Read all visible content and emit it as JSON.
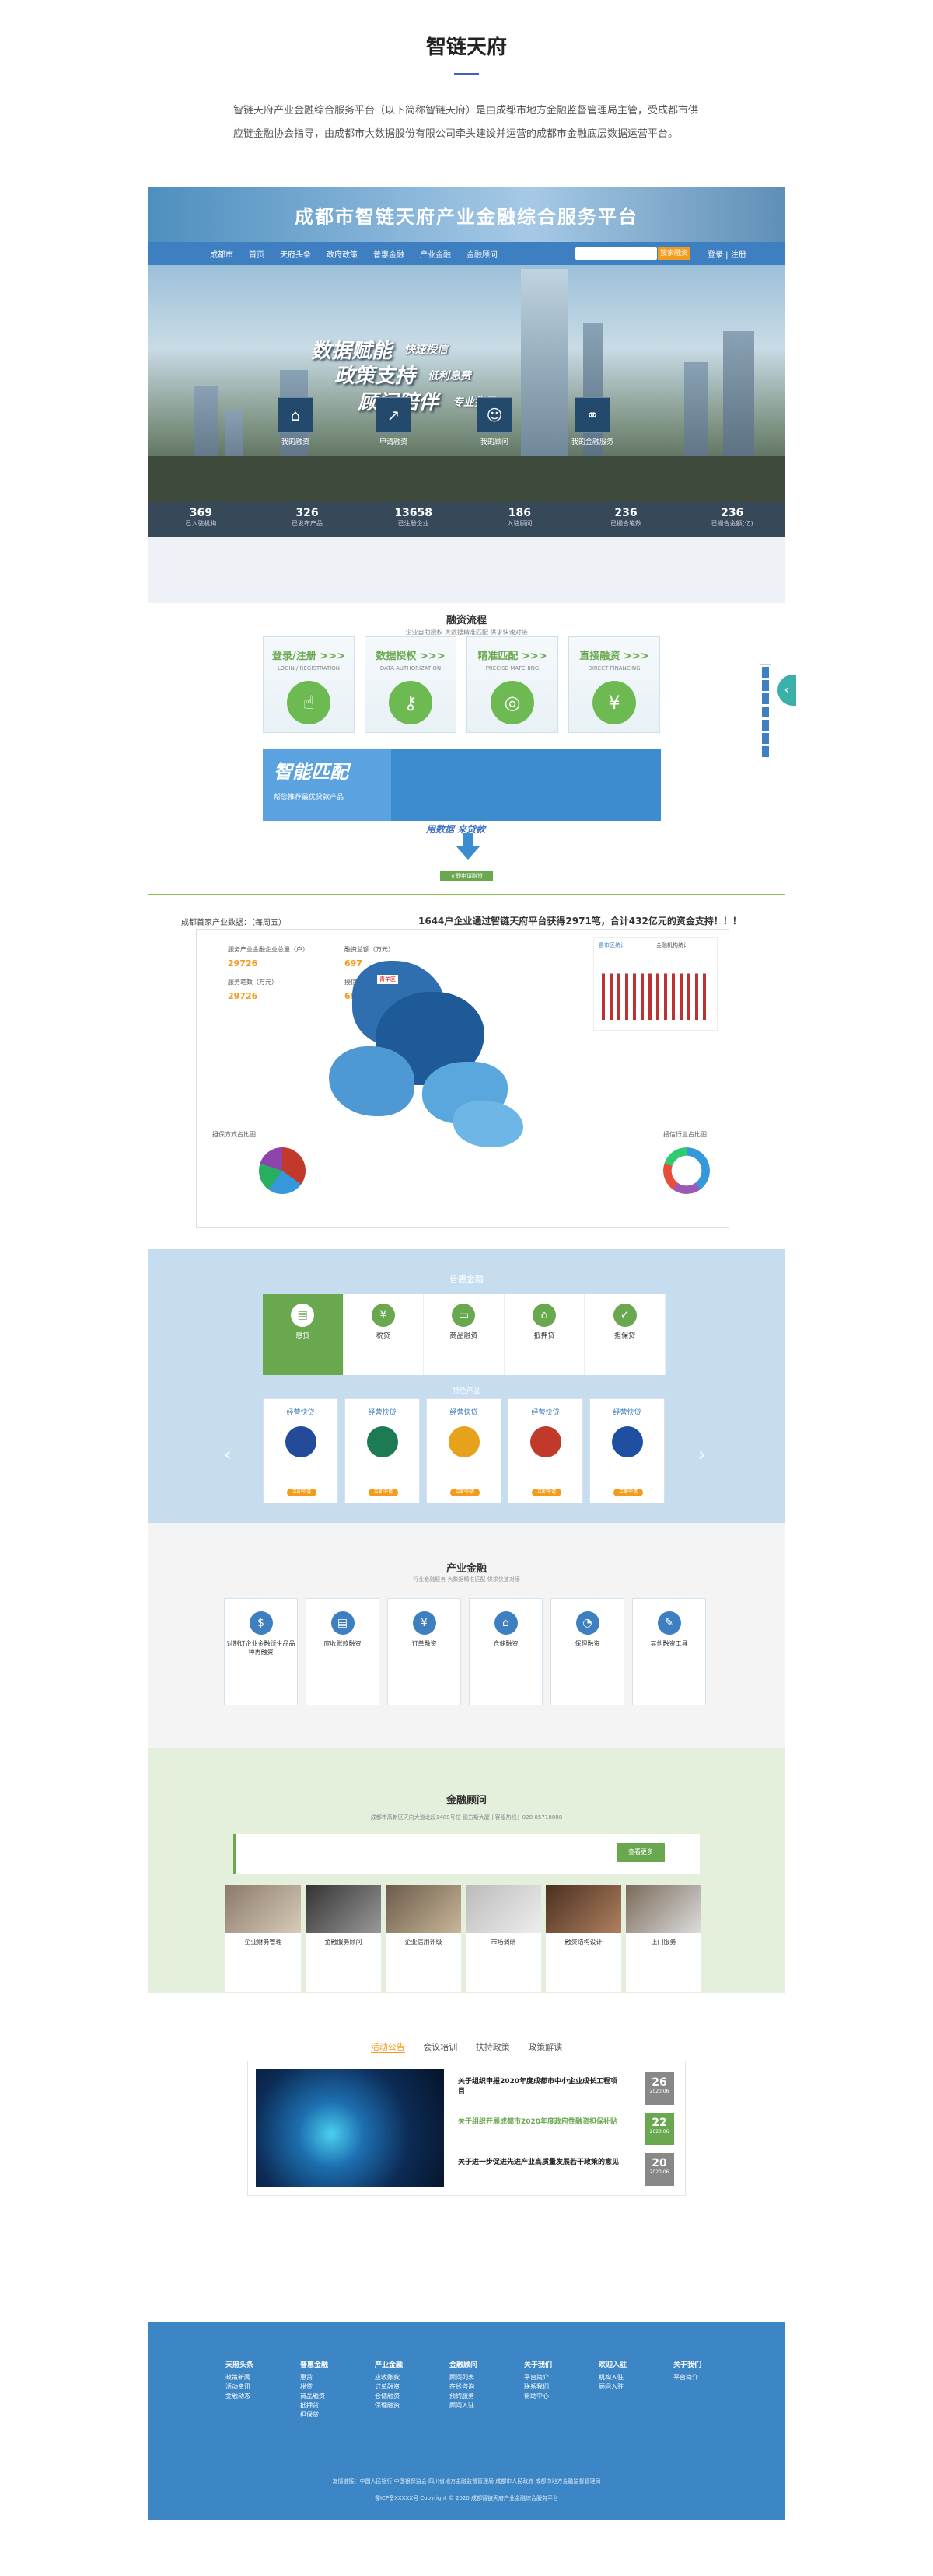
{
  "header": {
    "title": "智链天府",
    "description": "智链天府产业金融综合服务平台（以下简称智链天府）是由成都市地方金融监督管理局主管，受成都市供应链金融协会指导，由成都市大数据股份有限公司牵头建设并运营的成都市金融底层数据运营平台。"
  },
  "hero": {
    "site_title": "成都市智链天府产业金融综合服务平台",
    "nav": [
      "首页",
      "天府头条",
      "政府政策",
      "普惠金融",
      "产业金融",
      "金融顾问"
    ],
    "location": "成都市",
    "user_links": "登录 | 注册",
    "search_button": "搜索融资",
    "slogan1": "数据赋能",
    "slogan1b": "快速授信",
    "slogan2": "政策支持",
    "slogan2b": "低利息费",
    "slogan3": "顾问陪伴",
    "slogan3b": "专业指导",
    "features": [
      "我的融资",
      "申请融资",
      "我的顾问",
      "我的金融服务"
    ],
    "stats": [
      {
        "value": "369",
        "label": "已入驻机构"
      },
      {
        "value": "326",
        "label": "已发布产品"
      },
      {
        "value": "13658",
        "label": "已注册企业"
      },
      {
        "value": "186",
        "label": "入驻顾问"
      },
      {
        "value": "236",
        "label": "已撮合笔数"
      },
      {
        "value": "236",
        "label": "已撮合金额(亿)"
      }
    ]
  },
  "flow": {
    "title": "融资流程",
    "subtitle": "企业自助授权  大数据精准匹配  供求快速对接",
    "steps": [
      {
        "title": "登录/注册 >>>",
        "en": "LOGIN / REGISTRATION",
        "icon": "☝"
      },
      {
        "title": "数据授权 >>>",
        "en": "DATA AUTHORIZATION",
        "icon": "⚷"
      },
      {
        "title": "精准匹配 >>>",
        "en": "PRECISE MATCHING",
        "icon": "◎"
      },
      {
        "title": "直接融资 >>>",
        "en": "DIRECT FINANCING",
        "icon": "¥"
      }
    ],
    "match_title": "智能匹配",
    "match_sub": "帮您推荐最优贷款产品",
    "slogan": "用数据 来贷款",
    "apply": "立即申请融资"
  },
  "data": {
    "heading": "成都首家产业数据：（每周五）",
    "headline": "1644户企业通过智链天府平台获得2971笔，合计432亿元的资金支持！！！",
    "kv": [
      {
        "label": "服务产业金融企业总量（户）",
        "value": "29726"
      },
      {
        "label": "融资总额（万元）",
        "value": "697"
      },
      {
        "label": "服务笔数（万元）",
        "value": "29726"
      },
      {
        "label": "授信企业数量（户）",
        "value": "697"
      }
    ],
    "chart_tabs": [
      "县市区统计",
      "金融机构统计"
    ],
    "pie_left_title": "担保方式占比图",
    "pie_right_title": "授信行业占比图",
    "map_label": "青羊区"
  },
  "products": {
    "title": "普惠金融",
    "tabs": [
      "惠贷",
      "税贷",
      "商品融资",
      "抵押贷",
      "担保贷"
    ],
    "sub": "特色产品",
    "card_title": "经营快贷",
    "apply": "立即申请"
  },
  "industry": {
    "title": "产业金融",
    "subtitle": "行业金融服务  大数据精准匹配  供求快速对接",
    "cards": [
      "对制订企业金融衍生品品种再融资",
      "应收账款融资",
      "订单融资",
      "仓储融资",
      "保理融资",
      "其他融资工具"
    ]
  },
  "advisor": {
    "title": "金融顾问",
    "address": "成都市高新区天府大道北段1480号拉·德方斯大厦 | 客服热线：028-85718888",
    "more": "查看更多",
    "cards": [
      "企业财务管理",
      "金融服务顾问",
      "企业信用评级",
      "市场调研",
      "融资结构设计",
      "上门服务"
    ]
  },
  "notices": {
    "tabs": [
      "活动公告",
      "会议培训",
      "扶持政策",
      "政策解读"
    ],
    "items": [
      {
        "title": "关于组织申报2020年度成都市中小企业成长工程项目",
        "day": "26",
        "year": "2020.06"
      },
      {
        "title": "关于组织开展成都市2020年度政府性融资担保补贴",
        "day": "22",
        "year": "2020.06"
      },
      {
        "title": "关于进一步促进先进产业高质量发展若干政策的意见",
        "day": "20",
        "year": "2020.06"
      }
    ]
  },
  "footer": {
    "cols": [
      {
        "title": "天府头条",
        "items": [
          "政策新闻",
          "活动资讯",
          "金融动态"
        ]
      },
      {
        "title": "普惠金融",
        "items": [
          "惠贷",
          "税贷",
          "商品融资",
          "抵押贷",
          "担保贷"
        ]
      },
      {
        "title": "产业金融",
        "items": [
          "应收账款",
          "订单融资",
          "仓储融资",
          "保理融资"
        ]
      },
      {
        "title": "金融顾问",
        "items": [
          "顾问列表",
          "在线咨询",
          "预约服务",
          "顾问入驻"
        ]
      },
      {
        "title": "关于我们",
        "items": [
          "平台简介",
          "联系我们",
          "帮助中心"
        ]
      },
      {
        "title": "欢迎入驻",
        "items": [
          "机构入驻",
          "顾问入驻"
        ]
      },
      {
        "title": "关于我们",
        "items": [
          "平台简介"
        ]
      }
    ],
    "links": "友情链接：中国人民银行  中国银保监会  四川省地方金融监督管理局  成都市人民政府  成都市地方金融监督管理局",
    "copyright": "蜀ICP备XXXXX号  Copyright © 2020 成都智链天府产业金融综合服务平台"
  }
}
